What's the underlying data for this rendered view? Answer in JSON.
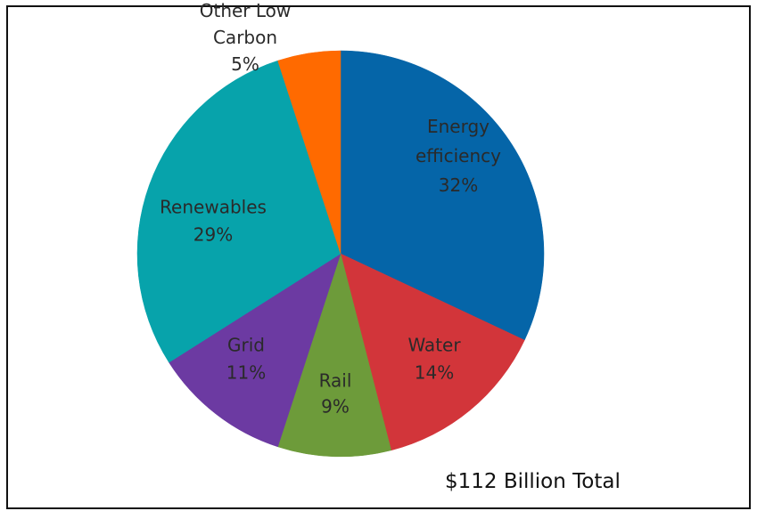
{
  "chart_data": {
    "type": "pie",
    "slices": [
      {
        "name": "Energy efficiency",
        "label_lines": [
          "Energy",
          "efficiency",
          "32%"
        ],
        "value": 32,
        "color": "#0565a8"
      },
      {
        "name": "Water",
        "label_lines": [
          "Water",
          "14%"
        ],
        "value": 14,
        "color": "#d2353a"
      },
      {
        "name": "Rail",
        "label_lines": [
          "Rail",
          "9%"
        ],
        "value": 9,
        "color": "#6d9b3a"
      },
      {
        "name": "Grid",
        "label_lines": [
          "Grid",
          "11%"
        ],
        "value": 11,
        "color": "#6c3aa2"
      },
      {
        "name": "Renewables",
        "label_lines": [
          "Renewables",
          "29%"
        ],
        "value": 29,
        "color": "#07a3ab"
      },
      {
        "name": "Other Low Carbon",
        "label_lines": [
          "Other Low",
          "Carbon",
          "5%"
        ],
        "value": 5,
        "color": "#ff6a00"
      }
    ],
    "annotation": "$112 Billion Total"
  }
}
